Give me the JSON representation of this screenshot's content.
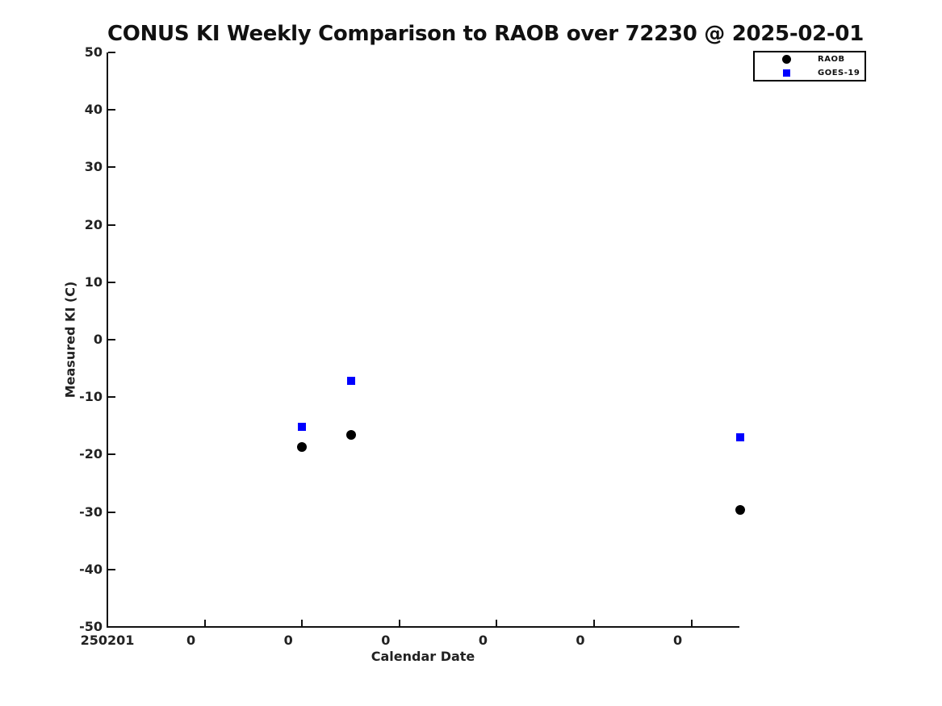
{
  "chart_data": {
    "type": "scatter",
    "title": "CONUS KI Weekly Comparison to RAOB over 72230 @ 2025-02-01",
    "xlabel": "Calendar Date",
    "ylabel": "Measured KI (C)",
    "ylim": [
      -50,
      50
    ],
    "ytick_values": [
      50,
      40,
      30,
      20,
      10,
      0,
      -10,
      -20,
      -30,
      -40,
      -50
    ],
    "ytick_labels": [
      "50",
      "40",
      "30",
      "20",
      "10",
      "0",
      "-10",
      "-20",
      "-30",
      "-40",
      "-50"
    ],
    "x_units": "days since 2025-02-01 00Z",
    "xlim": [
      0,
      6.52
    ],
    "xtick_values": [
      0,
      1,
      2,
      3,
      4,
      5,
      6
    ],
    "xtick_labels": [
      "250201",
      "0",
      "0",
      "0",
      "0",
      "0",
      "0"
    ],
    "grid": false,
    "legend_position": "top-right",
    "series": [
      {
        "name": "RAOB",
        "marker": "circle",
        "color": "#000000",
        "x": [
          2.0,
          2.5,
          6.5
        ],
        "y": [
          -18.7,
          -16.6,
          -29.7
        ]
      },
      {
        "name": "GOES-19",
        "marker": "square",
        "color": "#0000ff",
        "x": [
          2.0,
          2.5,
          6.5
        ],
        "y": [
          -15.2,
          -7.1,
          -17.0
        ]
      }
    ]
  },
  "legend": {
    "items": [
      {
        "label": "RAOB",
        "marker": "circle",
        "color": "#000000"
      },
      {
        "label": "GOES-19",
        "marker": "square",
        "color": "#0000ff"
      }
    ]
  }
}
